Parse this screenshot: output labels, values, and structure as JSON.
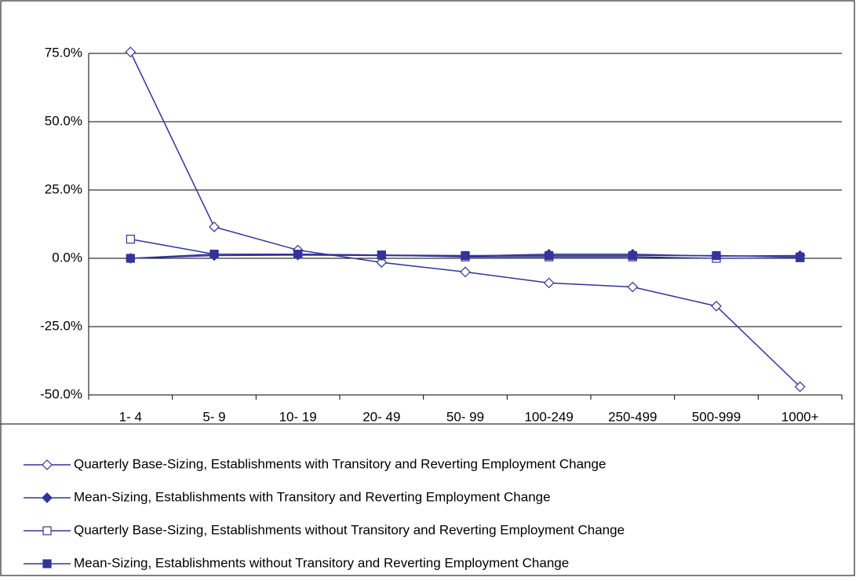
{
  "chart_data": {
    "type": "line",
    "categories": [
      "1- 4",
      "5- 9",
      "10- 19",
      "20- 49",
      "50- 99",
      "100-249",
      "250-499",
      "500-999",
      "1000+"
    ],
    "series": [
      {
        "name": "Quarterly Base-Sizing, Establishments with Transitory and Reverting Employment Change",
        "color": "#333399",
        "marker": "diamond",
        "filled": false,
        "values": [
          75.5,
          11.5,
          3,
          -1.5,
          -5,
          -9,
          -10.5,
          -17.5,
          -47
        ]
      },
      {
        "name": "Mean-Sizing, Establishments with Transitory and Reverting Employment Change",
        "color": "#333399",
        "marker": "diamond",
        "filled": true,
        "values": [
          0,
          1,
          1.2,
          1,
          0.8,
          1.5,
          1.5,
          0.8,
          1
        ]
      },
      {
        "name": "Quarterly Base-Sizing, Establishments without Transitory and Reverting Employment Change",
        "color": "#333399",
        "marker": "square",
        "filled": false,
        "values": [
          7,
          1.5,
          1.5,
          1.2,
          0.5,
          0.5,
          0.5,
          0,
          0.2
        ]
      },
      {
        "name": "Mean-Sizing, Establishments without Transitory and Reverting Employment Change",
        "color": "#333399",
        "marker": "square",
        "filled": true,
        "values": [
          0,
          1.5,
          1.5,
          1.2,
          1,
          1,
          1,
          1,
          0.5
        ]
      }
    ],
    "ylim": [
      -50,
      75
    ],
    "yticks": [
      {
        "value": -50,
        "label": "-50.0%"
      },
      {
        "value": -25,
        "label": "-25.0%"
      },
      {
        "value": 0,
        "label": "0.0%"
      },
      {
        "value": 25,
        "label": "25.0%"
      },
      {
        "value": 50,
        "label": "50.0%"
      },
      {
        "value": 75,
        "label": "75.0%"
      }
    ],
    "grid": true,
    "legend": "bottom"
  }
}
